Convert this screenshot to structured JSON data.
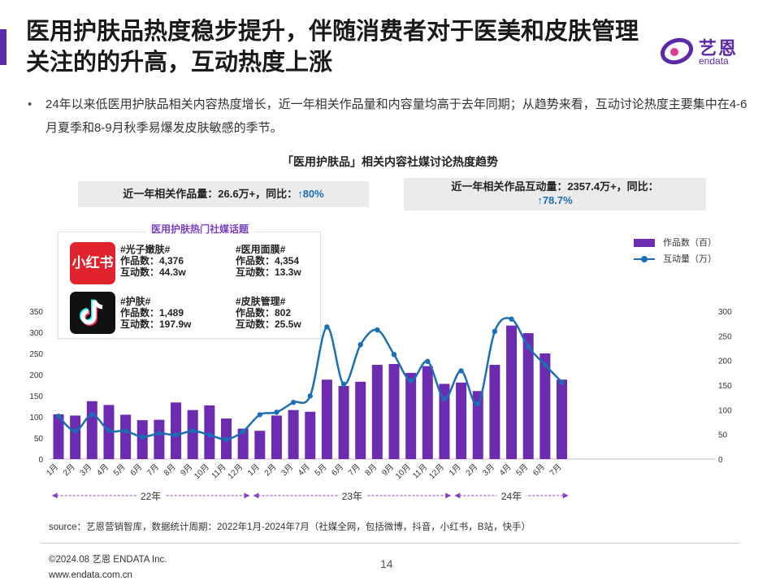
{
  "title": "医用护肤品热度稳步提升，伴随消费者对于医美和皮肤管理关注的的升高，互动热度上涨",
  "logo": {
    "cn": "艺恩",
    "en": "endata"
  },
  "bullet": "24年以来低医用护肤品相关内容热度增长，近一年相关作品量和内容量均高于去年同期；从趋势来看，互动讨论热度主要集中在4-6月夏季和8-9月秋季易爆发皮肤敏感的季节。",
  "chart_title": "「医用护肤品」相关内容社媒讨论热度趋势",
  "kpis": {
    "works": {
      "label": "近一年相关作品量：26.6万+，同比：",
      "growth": "↑80%"
    },
    "interact": {
      "label": "近一年相关作品互动量：2357.4万+，同比：",
      "growth": "↑78.7%"
    }
  },
  "topics_panel": {
    "title": "医用护肤热门社媒话题",
    "platforms": [
      {
        "icon": "xiaohongshu-icon",
        "icon_text": "小红书",
        "topics": [
          {
            "tag": "#光子嫩肤#",
            "works": "作品数：4,376",
            "interact": "互动数：44.3w"
          },
          {
            "tag": "#医用面膜#",
            "works": "作品数：4,354",
            "interact": "互动数：13.3w"
          }
        ]
      },
      {
        "icon": "douyin-icon",
        "topics": [
          {
            "tag": "#护肤#",
            "works": "作品数：1,489",
            "interact": "互动数：197.9w"
          },
          {
            "tag": "#皮肤管理#",
            "works": "作品数：802",
            "interact": "互动数：25.5w"
          }
        ]
      }
    ]
  },
  "chart_data": {
    "type": "bar",
    "categories": [
      "1月",
      "2月",
      "3月",
      "4月",
      "5月",
      "6月",
      "7月",
      "8月",
      "9月",
      "10月",
      "11月",
      "12月",
      "1月",
      "2月",
      "3月",
      "4月",
      "5月",
      "6月",
      "7月",
      "8月",
      "9月",
      "10月",
      "11月",
      "12月",
      "1月",
      "2月",
      "3月",
      "4月",
      "5月",
      "6月",
      "7月"
    ],
    "year_groups": [
      {
        "label": "22年",
        "count": 12
      },
      {
        "label": "23年",
        "count": 12
      },
      {
        "label": "24年",
        "count": 7
      }
    ],
    "series": [
      {
        "name": "作品数（百）",
        "type": "bar",
        "axis": "left",
        "values": [
          106,
          103,
          137,
          128,
          105,
          92,
          93,
          134,
          116,
          127,
          96,
          72,
          67,
          103,
          116,
          112,
          188,
          173,
          183,
          223,
          225,
          204,
          220,
          178,
          181,
          161,
          223,
          316,
          298,
          250,
          188
        ]
      },
      {
        "name": "互动量（万）",
        "type": "line",
        "axis": "right",
        "values": [
          87,
          57,
          90,
          58,
          57,
          45,
          52,
          49,
          57,
          49,
          40,
          56,
          90,
          95,
          115,
          128,
          268,
          152,
          232,
          262,
          212,
          159,
          198,
          122,
          179,
          112,
          259,
          284,
          228,
          191,
          156
        ]
      }
    ],
    "y_left": {
      "min": 0,
      "max": 350,
      "ticks": [
        0,
        50,
        100,
        150,
        200,
        250,
        300,
        350
      ]
    },
    "y_right": {
      "min": 0,
      "max": 300,
      "ticks": [
        0,
        50,
        100,
        150,
        200,
        250,
        300
      ]
    },
    "colors": {
      "bar": "#6c2bb0",
      "line": "#1a6fb5",
      "arrow": "#8b3fc4"
    },
    "legend_position": "top-right"
  },
  "source": "source：艺恩营销智库，数据统计周期：2022年1月-2024年7月（社媒全网，包括微博，抖音，小红书，B站，快手）",
  "footer": {
    "copyright": "©2024.08 艺恩 ENDATA Inc.",
    "url": "www.endata.com.cn",
    "page": "14"
  }
}
